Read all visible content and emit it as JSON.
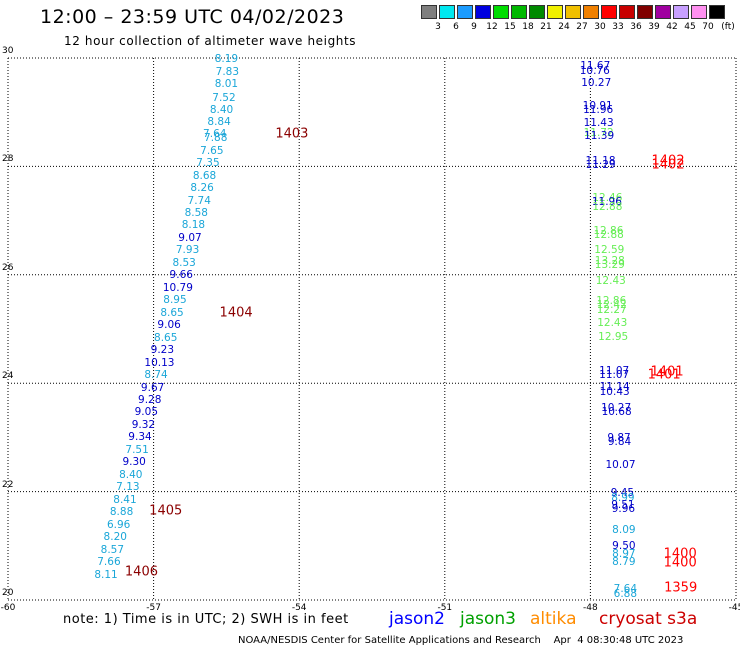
{
  "header": {
    "title": "12:00 – 23:59 UTC 04/02/2023",
    "subtitle": "12 hour collection of altimeter wave heights"
  },
  "colorbar": {
    "unit": "(ft)",
    "bins": [
      {
        "label": "3",
        "color": "#7f7f7f"
      },
      {
        "label": "6",
        "color": "#00e8f0"
      },
      {
        "label": "9",
        "color": "#1c9cff"
      },
      {
        "label": "12",
        "color": "#0000e0"
      },
      {
        "label": "15",
        "color": "#00dd00"
      },
      {
        "label": "18",
        "color": "#00b800"
      },
      {
        "label": "21",
        "color": "#008a00"
      },
      {
        "label": "24",
        "color": "#f0f000"
      },
      {
        "label": "27",
        "color": "#f0c000"
      },
      {
        "label": "30",
        "color": "#f08000"
      },
      {
        "label": "33",
        "color": "#ff0000"
      },
      {
        "label": "36",
        "color": "#c80000"
      },
      {
        "label": "39",
        "color": "#800000"
      },
      {
        "label": "42",
        "color": "#a000a0"
      },
      {
        "label": "45",
        "color": "#c8a0ff"
      },
      {
        "label": "70",
        "color": "#ff90f0"
      },
      {
        "label": "",
        "color": "#000000"
      }
    ]
  },
  "colors": {
    "cyan_text": "#1aa6d8",
    "blue_text": "#0000c8",
    "green_text": "#66ee55",
    "pass_darkred": "#8b0000",
    "pass_red": "#ff0000",
    "jason2": "#0000ff",
    "jason3": "#00a000",
    "altika": "#ff8c00",
    "cryosat": "#cc0000"
  },
  "chart_data": {
    "type": "scatter",
    "x_axis": {
      "min": -60,
      "max": -45,
      "ticks": [
        "-60",
        "-57",
        "-54",
        "-51",
        "-48",
        "-45"
      ]
    },
    "y_axis": {
      "min": 20,
      "max": 30,
      "ticks": [
        "30",
        "28",
        "26",
        "24",
        "22",
        "20"
      ]
    },
    "grid": true,
    "points": [
      {
        "lon": -55.5,
        "lat": 29.98,
        "v": "8.19",
        "c": "c"
      },
      {
        "lon": -55.48,
        "lat": 29.75,
        "v": "7.83",
        "c": "c"
      },
      {
        "lon": -55.5,
        "lat": 29.52,
        "v": "8.01",
        "c": "c"
      },
      {
        "lon": -55.55,
        "lat": 29.27,
        "v": "7.52",
        "c": "c"
      },
      {
        "lon": -55.6,
        "lat": 29.04,
        "v": "8.40",
        "c": "c"
      },
      {
        "lon": -55.65,
        "lat": 28.81,
        "v": "8.84",
        "c": "c"
      },
      {
        "lon": -55.74,
        "lat": 28.6,
        "v": "7.64",
        "c": "c"
      },
      {
        "lon": -55.72,
        "lat": 28.53,
        "v": "7.88",
        "c": "c"
      },
      {
        "lon": -55.8,
        "lat": 28.29,
        "v": "7.65",
        "c": "c"
      },
      {
        "lon": -55.88,
        "lat": 28.06,
        "v": "7.35",
        "c": "c"
      },
      {
        "lon": -55.95,
        "lat": 27.83,
        "v": "8.68",
        "c": "c"
      },
      {
        "lon": -56.0,
        "lat": 27.6,
        "v": "8.26",
        "c": "c"
      },
      {
        "lon": -56.06,
        "lat": 27.37,
        "v": "7.74",
        "c": "c"
      },
      {
        "lon": -56.12,
        "lat": 27.14,
        "v": "8.58",
        "c": "c"
      },
      {
        "lon": -56.18,
        "lat": 26.91,
        "v": "8.18",
        "c": "c"
      },
      {
        "lon": -56.25,
        "lat": 26.68,
        "v": "9.07",
        "c": "b"
      },
      {
        "lon": -56.3,
        "lat": 26.45,
        "v": "7.93",
        "c": "c"
      },
      {
        "lon": -56.37,
        "lat": 26.22,
        "v": "8.53",
        "c": "c"
      },
      {
        "lon": -56.43,
        "lat": 25.99,
        "v": "9.66",
        "c": "b"
      },
      {
        "lon": -56.5,
        "lat": 25.76,
        "v": "10.79",
        "c": "b"
      },
      {
        "lon": -56.56,
        "lat": 25.53,
        "v": "8.95",
        "c": "c"
      },
      {
        "lon": -56.62,
        "lat": 25.3,
        "v": "8.65",
        "c": "c"
      },
      {
        "lon": -56.68,
        "lat": 25.07,
        "v": "9.06",
        "c": "b"
      },
      {
        "lon": -56.75,
        "lat": 24.84,
        "v": "8.65",
        "c": "c"
      },
      {
        "lon": -56.82,
        "lat": 24.61,
        "v": "9.23",
        "c": "b"
      },
      {
        "lon": -56.88,
        "lat": 24.38,
        "v": "10.13",
        "c": "b"
      },
      {
        "lon": -56.95,
        "lat": 24.15,
        "v": "8.74",
        "c": "c"
      },
      {
        "lon": -57.02,
        "lat": 23.92,
        "v": "9.67",
        "c": "b"
      },
      {
        "lon": -57.08,
        "lat": 23.69,
        "v": "9.28",
        "c": "b"
      },
      {
        "lon": -57.15,
        "lat": 23.46,
        "v": "9.05",
        "c": "b"
      },
      {
        "lon": -57.21,
        "lat": 23.23,
        "v": "9.32",
        "c": "b"
      },
      {
        "lon": -57.28,
        "lat": 23.0,
        "v": "9.34",
        "c": "b"
      },
      {
        "lon": -57.34,
        "lat": 22.77,
        "v": "7.51",
        "c": "c"
      },
      {
        "lon": -57.4,
        "lat": 22.54,
        "v": "9.30",
        "c": "b"
      },
      {
        "lon": -57.47,
        "lat": 22.31,
        "v": "8.40",
        "c": "c"
      },
      {
        "lon": -57.53,
        "lat": 22.08,
        "v": "7.13",
        "c": "c"
      },
      {
        "lon": -57.59,
        "lat": 21.85,
        "v": "8.41",
        "c": "c"
      },
      {
        "lon": -57.66,
        "lat": 21.62,
        "v": "8.88",
        "c": "c"
      },
      {
        "lon": -57.72,
        "lat": 21.39,
        "v": "6.96",
        "c": "c"
      },
      {
        "lon": -57.79,
        "lat": 21.16,
        "v": "8.20",
        "c": "c"
      },
      {
        "lon": -57.85,
        "lat": 20.93,
        "v": "8.57",
        "c": "c"
      },
      {
        "lon": -57.92,
        "lat": 20.7,
        "v": "7.66",
        "c": "c"
      },
      {
        "lon": -57.98,
        "lat": 20.47,
        "v": "8.11",
        "c": "c"
      },
      {
        "lon": -47.9,
        "lat": 29.86,
        "v": "11.67",
        "c": "b"
      },
      {
        "lon": -47.91,
        "lat": 29.76,
        "v": "10.76",
        "c": "b"
      },
      {
        "lon": -47.88,
        "lat": 29.54,
        "v": "10.27",
        "c": "b"
      },
      {
        "lon": -47.85,
        "lat": 29.12,
        "v": "10.91",
        "c": "b"
      },
      {
        "lon": -47.84,
        "lat": 29.04,
        "v": "11.96",
        "c": "b"
      },
      {
        "lon": -47.83,
        "lat": 28.8,
        "v": "11.43",
        "c": "b"
      },
      {
        "lon": -47.83,
        "lat": 28.62,
        "v": "11.72",
        "c": "g"
      },
      {
        "lon": -47.82,
        "lat": 28.56,
        "v": "11.39",
        "c": "b"
      },
      {
        "lon": -47.79,
        "lat": 28.1,
        "v": "11.18",
        "c": "b"
      },
      {
        "lon": -47.79,
        "lat": 28.03,
        "v": "11.29",
        "c": "b"
      },
      {
        "lon": -47.65,
        "lat": 27.42,
        "v": "12.46",
        "c": "g"
      },
      {
        "lon": -47.66,
        "lat": 27.34,
        "v": "11.96",
        "c": "b"
      },
      {
        "lon": -47.65,
        "lat": 27.26,
        "v": "12.88",
        "c": "g"
      },
      {
        "lon": -47.63,
        "lat": 26.8,
        "v": "12.86",
        "c": "g"
      },
      {
        "lon": -47.62,
        "lat": 26.73,
        "v": "12.88",
        "c": "g"
      },
      {
        "lon": -47.61,
        "lat": 26.45,
        "v": "12.59",
        "c": "g"
      },
      {
        "lon": -47.6,
        "lat": 26.25,
        "v": "13.28",
        "c": "g"
      },
      {
        "lon": -47.6,
        "lat": 26.19,
        "v": "13.29",
        "c": "g"
      },
      {
        "lon": -47.58,
        "lat": 25.89,
        "v": "12.43",
        "c": "g"
      },
      {
        "lon": -47.57,
        "lat": 25.52,
        "v": "12.86",
        "c": "g"
      },
      {
        "lon": -47.56,
        "lat": 25.45,
        "v": "12.42",
        "c": "g"
      },
      {
        "lon": -47.56,
        "lat": 25.35,
        "v": "12.27",
        "c": "g"
      },
      {
        "lon": -47.55,
        "lat": 25.11,
        "v": "12.43",
        "c": "g"
      },
      {
        "lon": -47.53,
        "lat": 24.85,
        "v": "12.95",
        "c": "g"
      },
      {
        "lon": -47.51,
        "lat": 24.23,
        "v": "11.07",
        "c": "b"
      },
      {
        "lon": -47.51,
        "lat": 24.16,
        "v": "11.07",
        "c": "b"
      },
      {
        "lon": -47.5,
        "lat": 23.93,
        "v": "11.14",
        "c": "b"
      },
      {
        "lon": -47.5,
        "lat": 23.84,
        "v": "10.43",
        "c": "b"
      },
      {
        "lon": -47.47,
        "lat": 23.55,
        "v": "10.27",
        "c": "b"
      },
      {
        "lon": -47.46,
        "lat": 23.47,
        "v": "10.68",
        "c": "b"
      },
      {
        "lon": -47.41,
        "lat": 22.99,
        "v": "9.87",
        "c": "b"
      },
      {
        "lon": -47.4,
        "lat": 22.92,
        "v": "9.84",
        "c": "b"
      },
      {
        "lon": -47.38,
        "lat": 22.5,
        "v": "10.07",
        "c": "b"
      },
      {
        "lon": -47.34,
        "lat": 21.98,
        "v": "9.45",
        "c": "b"
      },
      {
        "lon": -47.33,
        "lat": 21.89,
        "v": "8.99",
        "c": "c"
      },
      {
        "lon": -47.33,
        "lat": 21.76,
        "v": "9.51",
        "c": "b"
      },
      {
        "lon": -47.32,
        "lat": 21.67,
        "v": "9.96",
        "c": "b"
      },
      {
        "lon": -47.31,
        "lat": 21.3,
        "v": "8.09",
        "c": "c"
      },
      {
        "lon": -47.31,
        "lat": 21.0,
        "v": "9.50",
        "c": "b"
      },
      {
        "lon": -47.31,
        "lat": 20.85,
        "v": "8.97",
        "c": "c"
      },
      {
        "lon": -47.31,
        "lat": 20.7,
        "v": "8.79",
        "c": "c"
      },
      {
        "lon": -47.28,
        "lat": 20.2,
        "v": "7.64",
        "c": "c"
      },
      {
        "lon": -47.28,
        "lat": 20.11,
        "v": "6.88",
        "c": "c"
      }
    ],
    "passes": [
      {
        "lon": -54.15,
        "lat": 28.6,
        "label": "1403",
        "c": "dr"
      },
      {
        "lon": -55.3,
        "lat": 25.3,
        "label": "1404",
        "c": "dr"
      },
      {
        "lon": -56.75,
        "lat": 21.65,
        "label": "1405",
        "c": "dr"
      },
      {
        "lon": -57.25,
        "lat": 20.52,
        "label": "1406",
        "c": "dr"
      },
      {
        "lon": -46.4,
        "lat": 28.1,
        "label": "1402",
        "c": "r"
      },
      {
        "lon": -46.4,
        "lat": 28.03,
        "label": "1402",
        "c": "r"
      },
      {
        "lon": -46.42,
        "lat": 24.21,
        "label": "1401",
        "c": "r"
      },
      {
        "lon": -46.48,
        "lat": 24.16,
        "label": "1401",
        "c": "r"
      },
      {
        "lon": -46.15,
        "lat": 20.84,
        "label": "1400",
        "c": "r"
      },
      {
        "lon": -46.15,
        "lat": 20.68,
        "label": "1400",
        "c": "r"
      },
      {
        "lon": -46.14,
        "lat": 20.22,
        "label": "1359",
        "c": "r"
      }
    ]
  },
  "footer": {
    "note": "note:  1) Time is in UTC;  2) SWH is in feet",
    "satellites": {
      "jason2": "jason2",
      "jason3": "jason3",
      "altika": "altika",
      "cryosat": "cryosat s3a"
    },
    "credit": "NOAA/NESDIS Center for Satellite Applications and Research    Apr  4 08:30:48 UTC 2023"
  }
}
